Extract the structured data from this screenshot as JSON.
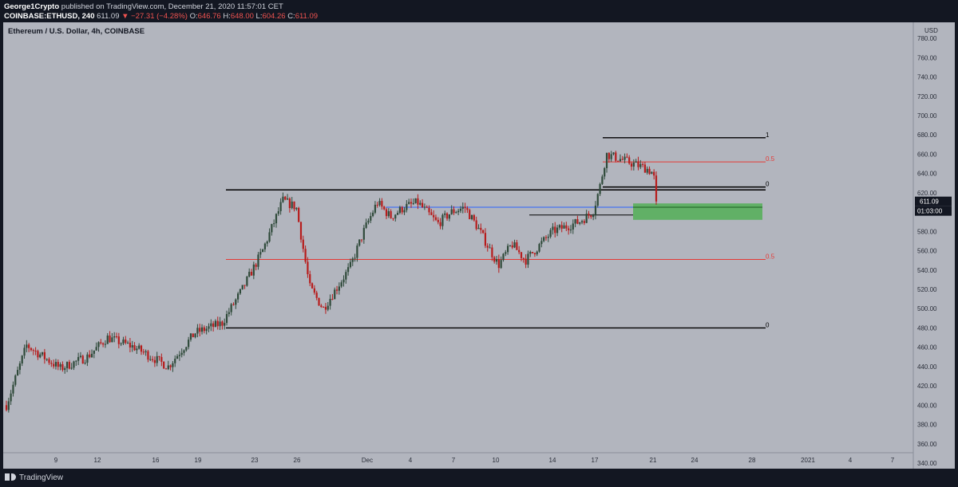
{
  "header": {
    "author": "George1Crypto",
    "published": "published on TradingView.com, December 21, 2020 11:57:01 CET",
    "symbol": "COINBASE:ETHUSD, 240",
    "last": "611.09",
    "change": "▼ −27.31 (−4.28%)",
    "open_label": "O:",
    "open_value": "646.76",
    "high_label": "H:",
    "high_value": "648.00",
    "low_label": "L:",
    "low_value": "604.26",
    "close_label": "C:",
    "close_value": "611.09"
  },
  "footer": {
    "brand": "TradingView"
  },
  "colors": {
    "up": "#2f4a3a",
    "down": "#b71c1c",
    "sr": "#000000",
    "fib_mid": "#e53935",
    "blue": "#2962ff",
    "zone": "#4caf50",
    "axis_text": "#2a2e39"
  },
  "chart_data": {
    "type": "candlestick",
    "title": "Ethereum / U.S. Dollar, 4h, COINBASE",
    "currency": "USD",
    "ylim": [
      340,
      790
    ],
    "y_ticks": [
      780,
      760,
      740,
      720,
      700,
      680,
      660,
      640,
      620,
      600,
      580,
      560,
      540,
      520,
      500,
      480,
      460,
      440,
      420,
      400,
      380,
      360,
      340
    ],
    "x_ticks": [
      "9",
      "12",
      "16",
      "19",
      "23",
      "26",
      "Dec",
      "4",
      "7",
      "10",
      "14",
      "17",
      "21",
      "24",
      "28",
      "2021",
      "4",
      "7"
    ],
    "last_price": "611.09",
    "countdown": "01:03:00",
    "levels": [
      {
        "name": "range-high",
        "value": 623,
        "label": ""
      },
      {
        "name": "range-mid",
        "value": 551,
        "label": "0.5"
      },
      {
        "name": "range-low",
        "value": 480,
        "label": "0"
      },
      {
        "name": "upper-high",
        "value": 677,
        "label": "1"
      },
      {
        "name": "upper-mid",
        "value": 652,
        "label": "0.5"
      },
      {
        "name": "upper-low",
        "value": 626,
        "label": "0"
      },
      {
        "name": "prior-high",
        "value": 605,
        "label": ""
      },
      {
        "name": "range-step",
        "value": 597,
        "label": ""
      }
    ],
    "zone": {
      "from": 592,
      "to": 609
    },
    "series": [
      {
        "name": "ETHUSD 4h",
        "anchors": [
          [
            0,
            400
          ],
          [
            1.5,
            462
          ],
          [
            4,
            438
          ],
          [
            6,
            450
          ],
          [
            7.5,
            470
          ],
          [
            9.5,
            460
          ],
          [
            12,
            440
          ],
          [
            14,
            475
          ],
          [
            16,
            485
          ],
          [
            17.5,
            520
          ],
          [
            19,
            560
          ],
          [
            20.5,
            612
          ],
          [
            21.5,
            605
          ],
          [
            22.5,
            522
          ],
          [
            23.5,
            500
          ],
          [
            25.5,
            543
          ],
          [
            26.5,
            580
          ],
          [
            27.5,
            610
          ],
          [
            28.5,
            595
          ],
          [
            29.5,
            605
          ],
          [
            30.5,
            610
          ],
          [
            32,
            588
          ],
          [
            33,
            600
          ],
          [
            34,
            605
          ],
          [
            35,
            583
          ],
          [
            36.5,
            545
          ],
          [
            37.5,
            567
          ],
          [
            38.5,
            550
          ],
          [
            39.5,
            565
          ],
          [
            40.5,
            580
          ],
          [
            42.5,
            590
          ],
          [
            43.5,
            600
          ],
          [
            44,
            625
          ],
          [
            44.5,
            660
          ],
          [
            45.5,
            655
          ],
          [
            46.5,
            650
          ],
          [
            47.5,
            645
          ],
          [
            48,
            640
          ],
          [
            48.2,
            611
          ]
        ]
      }
    ]
  }
}
